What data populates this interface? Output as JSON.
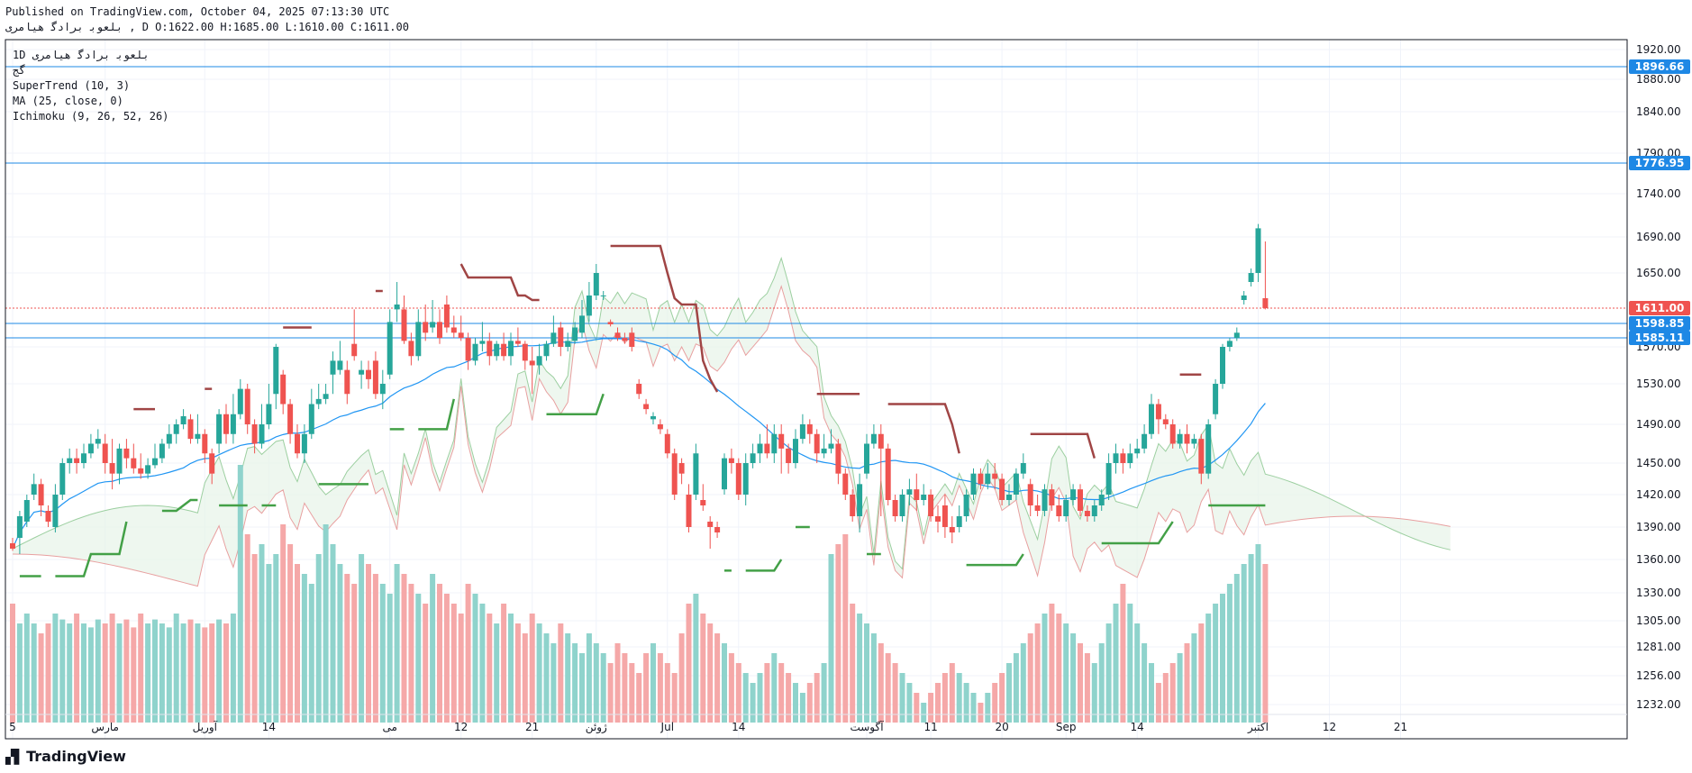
{
  "header": {
    "published": "Published on TradingView.com, October 04, 2025 07:13:30 UTC",
    "symbol_line": "ﺑﻠﻌﻮﺑ ﺑﺮﺍﺩﮔ ﻫﻴﺎﻣﺮﻯ , D O:1622.00 H:1685.00 L:1610.00 C:1611.00"
  },
  "legend": {
    "title": "1D ﺑﻠﻌﻮﺑ ﺑﺮﺍﺩﮔ ﻫﻴﺎﻣﺮﻯ",
    "sub": "ﮔﺞ",
    "supertrend": "SuperTrend (10, 3)",
    "ma": "MA (25, close, 0)",
    "ichimoku": "Ichimoku (9, 26, 52, 26)"
  },
  "brand": {
    "name": "TradingView",
    "logo_icon": "tradingview-logo-icon"
  },
  "colors": {
    "up": "#26a69a",
    "down": "#ef5350",
    "vol_up": "#8fd3cc",
    "vol_down": "#f5a8a8",
    "supertrend_up": "#43a047",
    "supertrend_down": "#a04545",
    "ma": "#2196f3",
    "hline": "#1e88e5",
    "cloud_green": "#e7f3e8",
    "cloud_red": "#fde6e6",
    "span_a": "#9ccfa0",
    "span_b": "#e8a0a0"
  },
  "chart_data": {
    "type": "candlestick",
    "y_ticks": [
      "1920.00",
      "1880.00",
      "1840.00",
      "1790.00",
      "1740.00",
      "1690.00",
      "1650.00",
      "1570.00",
      "1530.00",
      "1490.00",
      "1450.00",
      "1420.00",
      "1390.00",
      "1360.00",
      "1330.00",
      "1305.00",
      "1281.00",
      "1256.00",
      "1232.00"
    ],
    "x_ticks": [
      {
        "i": 0,
        "label": "5"
      },
      {
        "i": 13,
        "label": "ﻣﺎﺭﺱ"
      },
      {
        "i": 27,
        "label": "ﺁﻭﺭﯾﻞ"
      },
      {
        "i": 36,
        "label": "14"
      },
      {
        "i": 53,
        "label": "ﻣﯽ"
      },
      {
        "i": 63,
        "label": "12"
      },
      {
        "i": 73,
        "label": "21"
      },
      {
        "i": 82,
        "label": "ﮊﻭﺋﻦ"
      },
      {
        "i": 92,
        "label": "Jul"
      },
      {
        "i": 102,
        "label": "14"
      },
      {
        "i": 120,
        "label": "ﺁﮔﻮﺳﺖ"
      },
      {
        "i": 129,
        "label": "11"
      },
      {
        "i": 139,
        "label": "20"
      },
      {
        "i": 148,
        "label": "Sep"
      },
      {
        "i": 158,
        "label": "14"
      },
      {
        "i": 175,
        "label": "ﺍﮐﺘﺒﺮ"
      },
      {
        "i": 185,
        "label": "12"
      },
      {
        "i": 195,
        "label": "21"
      }
    ],
    "h_lines": [
      {
        "value": 1896.66,
        "label": "1896.66"
      },
      {
        "value": 1776.95,
        "label": "1776.95"
      },
      {
        "value": 1598.85,
        "label": "1598.85"
      },
      {
        "value": 1585.11,
        "label": "1585.11"
      }
    ],
    "last_price": {
      "value": 1611.0,
      "label": "1611.00"
    },
    "candles": [
      [
        1375,
        1370,
        1380,
        1368
      ],
      [
        1380,
        1400,
        1405,
        1365
      ],
      [
        1395,
        1415,
        1420,
        1390
      ],
      [
        1420,
        1430,
        1440,
        1415
      ],
      [
        1430,
        1410,
        1435,
        1400
      ],
      [
        1405,
        1395,
        1410,
        1390
      ],
      [
        1390,
        1420,
        1430,
        1385
      ],
      [
        1420,
        1450,
        1455,
        1415
      ],
      [
        1450,
        1455,
        1465,
        1440
      ],
      [
        1455,
        1450,
        1465,
        1440
      ],
      [
        1450,
        1460,
        1470,
        1445
      ],
      [
        1460,
        1470,
        1480,
        1455
      ],
      [
        1470,
        1475,
        1485,
        1465
      ],
      [
        1470,
        1450,
        1480,
        1440
      ],
      [
        1450,
        1440,
        1475,
        1425
      ],
      [
        1440,
        1465,
        1470,
        1430
      ],
      [
        1465,
        1455,
        1475,
        1445
      ],
      [
        1455,
        1445,
        1470,
        1440
      ],
      [
        1445,
        1440,
        1460,
        1435
      ],
      [
        1440,
        1448,
        1455,
        1435
      ],
      [
        1448,
        1455,
        1470,
        1445
      ],
      [
        1455,
        1470,
        1475,
        1450
      ],
      [
        1470,
        1480,
        1490,
        1465
      ],
      [
        1480,
        1490,
        1495,
        1470
      ],
      [
        1490,
        1498,
        1505,
        1485
      ],
      [
        1495,
        1475,
        1500,
        1470
      ],
      [
        1475,
        1480,
        1500,
        1470
      ],
      [
        1480,
        1460,
        1485,
        1450
      ],
      [
        1460,
        1440,
        1465,
        1430
      ],
      [
        1470,
        1500,
        1505,
        1460
      ],
      [
        1500,
        1480,
        1510,
        1470
      ],
      [
        1480,
        1500,
        1520,
        1470
      ],
      [
        1500,
        1525,
        1535,
        1495
      ],
      [
        1525,
        1490,
        1530,
        1480
      ],
      [
        1490,
        1470,
        1495,
        1460
      ],
      [
        1470,
        1490,
        1510,
        1465
      ],
      [
        1490,
        1510,
        1530,
        1485
      ],
      [
        1520,
        1570,
        1575,
        1505
      ],
      [
        1540,
        1510,
        1545,
        1500
      ],
      [
        1510,
        1480,
        1515,
        1470
      ],
      [
        1480,
        1460,
        1490,
        1455
      ],
      [
        1460,
        1480,
        1490,
        1450
      ],
      [
        1480,
        1510,
        1525,
        1475
      ],
      [
        1510,
        1515,
        1530,
        1505
      ],
      [
        1515,
        1520,
        1530,
        1510
      ],
      [
        1540,
        1555,
        1565,
        1520
      ],
      [
        1545,
        1555,
        1580,
        1540
      ],
      [
        1545,
        1520,
        1555,
        1510
      ],
      [
        1575,
        1560,
        1610,
        1555
      ],
      [
        1540,
        1545,
        1555,
        1525
      ],
      [
        1545,
        1535,
        1555,
        1525
      ],
      [
        1555,
        1520,
        1565,
        1515
      ],
      [
        1520,
        1530,
        1545,
        1505
      ],
      [
        1540,
        1600,
        1610,
        1535
      ],
      [
        1610,
        1615,
        1640,
        1600
      ],
      [
        1610,
        1580,
        1625,
        1575
      ],
      [
        1580,
        1560,
        1590,
        1550
      ],
      [
        1560,
        1600,
        1610,
        1555
      ],
      [
        1600,
        1590,
        1615,
        1580
      ],
      [
        1595,
        1600,
        1620,
        1590
      ],
      [
        1600,
        1585,
        1610,
        1575
      ],
      [
        1615,
        1595,
        1625,
        1590
      ],
      [
        1595,
        1590,
        1605,
        1585
      ],
      [
        1590,
        1585,
        1605,
        1580
      ],
      [
        1585,
        1555,
        1590,
        1545
      ],
      [
        1555,
        1575,
        1585,
        1550
      ],
      [
        1575,
        1580,
        1600,
        1565
      ],
      [
        1580,
        1560,
        1590,
        1550
      ],
      [
        1560,
        1575,
        1580,
        1555
      ],
      [
        1575,
        1560,
        1590,
        1555
      ],
      [
        1560,
        1580,
        1590,
        1550
      ],
      [
        1580,
        1575,
        1595,
        1570
      ],
      [
        1575,
        1555,
        1580,
        1545
      ],
      [
        1555,
        1550,
        1570,
        1520
      ],
      [
        1550,
        1560,
        1575,
        1540
      ],
      [
        1560,
        1575,
        1580,
        1555
      ],
      [
        1575,
        1590,
        1605,
        1570
      ],
      [
        1595,
        1570,
        1600,
        1560
      ],
      [
        1570,
        1580,
        1590,
        1565
      ],
      [
        1580,
        1595,
        1600,
        1575
      ],
      [
        1590,
        1605,
        1620,
        1585
      ],
      [
        1605,
        1625,
        1640,
        1600
      ],
      [
        1625,
        1650,
        1660,
        1620
      ],
      [
        1625,
        1625,
        1630,
        1620
      ],
      [
        1600,
        1598,
        1602,
        1596
      ],
      [
        1590,
        1585,
        1595,
        1580
      ],
      [
        1585,
        1580,
        1590,
        1575
      ],
      [
        1590,
        1570,
        1595,
        1565
      ],
      [
        1530,
        1520,
        1535,
        1515
      ],
      [
        1510,
        1505,
        1515,
        1500
      ],
      [
        1495,
        1498,
        1502,
        1490
      ],
      [
        1490,
        1485,
        1495,
        1480
      ],
      [
        1480,
        1460,
        1485,
        1455
      ],
      [
        1460,
        1420,
        1465,
        1415
      ],
      [
        1450,
        1440,
        1455,
        1430
      ],
      [
        1420,
        1390,
        1430,
        1385
      ],
      [
        1420,
        1460,
        1470,
        1415
      ],
      [
        1415,
        1410,
        1430,
        1405
      ],
      [
        1395,
        1390,
        1400,
        1370
      ],
      [
        1390,
        1385,
        1395,
        1380
      ],
      [
        1425,
        1455,
        1460,
        1420
      ],
      [
        1455,
        1450,
        1465,
        1440
      ],
      [
        1450,
        1420,
        1455,
        1415
      ],
      [
        1420,
        1450,
        1460,
        1410
      ],
      [
        1450,
        1460,
        1470,
        1445
      ],
      [
        1460,
        1470,
        1480,
        1450
      ],
      [
        1470,
        1460,
        1490,
        1455
      ],
      [
        1460,
        1480,
        1490,
        1450
      ],
      [
        1480,
        1465,
        1490,
        1440
      ],
      [
        1465,
        1450,
        1470,
        1440
      ],
      [
        1450,
        1475,
        1485,
        1445
      ],
      [
        1475,
        1490,
        1500,
        1470
      ],
      [
        1490,
        1480,
        1495,
        1470
      ],
      [
        1480,
        1460,
        1485,
        1450
      ],
      [
        1460,
        1465,
        1480,
        1455
      ],
      [
        1465,
        1470,
        1485,
        1460
      ],
      [
        1470,
        1440,
        1475,
        1430
      ],
      [
        1440,
        1420,
        1445,
        1415
      ],
      [
        1420,
        1400,
        1425,
        1395
      ],
      [
        1400,
        1430,
        1440,
        1385
      ],
      [
        1440,
        1470,
        1480,
        1435
      ],
      [
        1470,
        1480,
        1490,
        1465
      ],
      [
        1480,
        1465,
        1490,
        1400
      ],
      [
        1465,
        1415,
        1470,
        1410
      ],
      [
        1415,
        1400,
        1420,
        1395
      ],
      [
        1400,
        1420,
        1425,
        1395
      ],
      [
        1420,
        1425,
        1435,
        1410
      ],
      [
        1425,
        1415,
        1440,
        1405
      ],
      [
        1415,
        1420,
        1430,
        1410
      ],
      [
        1420,
        1400,
        1425,
        1395
      ],
      [
        1400,
        1395,
        1410,
        1385
      ],
      [
        1410,
        1390,
        1420,
        1380
      ],
      [
        1390,
        1385,
        1400,
        1375
      ],
      [
        1390,
        1400,
        1410,
        1385
      ],
      [
        1400,
        1420,
        1425,
        1395
      ],
      [
        1420,
        1440,
        1445,
        1415
      ],
      [
        1440,
        1430,
        1445,
        1425
      ],
      [
        1430,
        1440,
        1450,
        1425
      ],
      [
        1440,
        1435,
        1450,
        1425
      ],
      [
        1435,
        1415,
        1440,
        1410
      ],
      [
        1415,
        1420,
        1430,
        1410
      ],
      [
        1420,
        1440,
        1445,
        1415
      ],
      [
        1440,
        1450,
        1460,
        1435
      ],
      [
        1430,
        1410,
        1435,
        1400
      ],
      [
        1410,
        1405,
        1420,
        1400
      ],
      [
        1405,
        1425,
        1430,
        1400
      ],
      [
        1425,
        1410,
        1430,
        1405
      ],
      [
        1410,
        1400,
        1420,
        1395
      ],
      [
        1400,
        1415,
        1420,
        1395
      ],
      [
        1415,
        1425,
        1430,
        1410
      ],
      [
        1425,
        1405,
        1430,
        1400
      ],
      [
        1405,
        1400,
        1410,
        1395
      ],
      [
        1400,
        1410,
        1415,
        1395
      ],
      [
        1410,
        1420,
        1425,
        1405
      ],
      [
        1420,
        1450,
        1460,
        1415
      ],
      [
        1450,
        1460,
        1470,
        1440
      ],
      [
        1460,
        1450,
        1465,
        1440
      ],
      [
        1450,
        1460,
        1470,
        1445
      ],
      [
        1460,
        1465,
        1475,
        1455
      ],
      [
        1465,
        1480,
        1490,
        1460
      ],
      [
        1480,
        1510,
        1520,
        1475
      ],
      [
        1510,
        1495,
        1515,
        1480
      ],
      [
        1495,
        1490,
        1500,
        1485
      ],
      [
        1490,
        1470,
        1495,
        1465
      ],
      [
        1470,
        1480,
        1485,
        1465
      ],
      [
        1480,
        1470,
        1490,
        1460
      ],
      [
        1470,
        1475,
        1480,
        1465
      ],
      [
        1475,
        1440,
        1480,
        1430
      ],
      [
        1440,
        1490,
        1495,
        1435
      ],
      [
        1500,
        1530,
        1535,
        1495
      ],
      [
        1530,
        1570,
        1575,
        1525
      ],
      [
        1570,
        1580,
        1585,
        1565
      ],
      [
        1585,
        1590,
        1595,
        1580
      ],
      [
        1620,
        1625,
        1630,
        1615
      ],
      [
        1640,
        1650,
        1655,
        1635
      ],
      [
        1650,
        1700,
        1705,
        1640
      ],
      [
        1622,
        1611,
        1685,
        1610
      ]
    ],
    "volume": [
      60,
      50,
      55,
      50,
      45,
      50,
      55,
      52,
      50,
      55,
      50,
      48,
      52,
      50,
      55,
      50,
      52,
      48,
      55,
      50,
      52,
      50,
      48,
      55,
      50,
      52,
      50,
      48,
      50,
      52,
      50,
      55,
      130,
      95,
      85,
      90,
      80,
      85,
      100,
      90,
      80,
      75,
      70,
      85,
      100,
      90,
      80,
      75,
      70,
      85,
      80,
      75,
      70,
      65,
      80,
      75,
      70,
      65,
      60,
      75,
      70,
      65,
      60,
      55,
      70,
      65,
      60,
      55,
      50,
      60,
      55,
      50,
      45,
      55,
      50,
      45,
      40,
      50,
      45,
      40,
      35,
      45,
      40,
      35,
      30,
      40,
      35,
      30,
      25,
      35,
      40,
      35,
      30,
      25,
      45,
      60,
      65,
      55,
      50,
      45,
      40,
      35,
      30,
      25,
      20,
      25,
      30,
      35,
      30,
      25,
      20,
      15,
      20,
      25,
      30,
      85,
      90,
      95,
      60,
      55,
      50,
      45,
      40,
      35,
      30,
      25,
      20,
      15,
      10,
      15,
      20,
      25,
      30,
      25,
      20,
      15,
      10,
      15,
      20,
      25,
      30,
      35,
      40,
      45,
      50,
      55,
      60,
      55,
      50,
      45,
      40,
      35,
      30,
      40,
      50,
      60,
      70,
      60,
      50,
      40,
      30,
      20,
      25,
      30,
      35,
      40,
      45,
      50,
      55,
      60,
      65,
      70,
      75,
      80,
      85,
      90,
      80
    ],
    "supertrend": [
      {
        "from": 0,
        "to": 27,
        "value": 1500,
        "dir": "down"
      },
      {
        "from": 27,
        "to": 28,
        "value": 1390,
        "dir": "up"
      }
    ]
  }
}
